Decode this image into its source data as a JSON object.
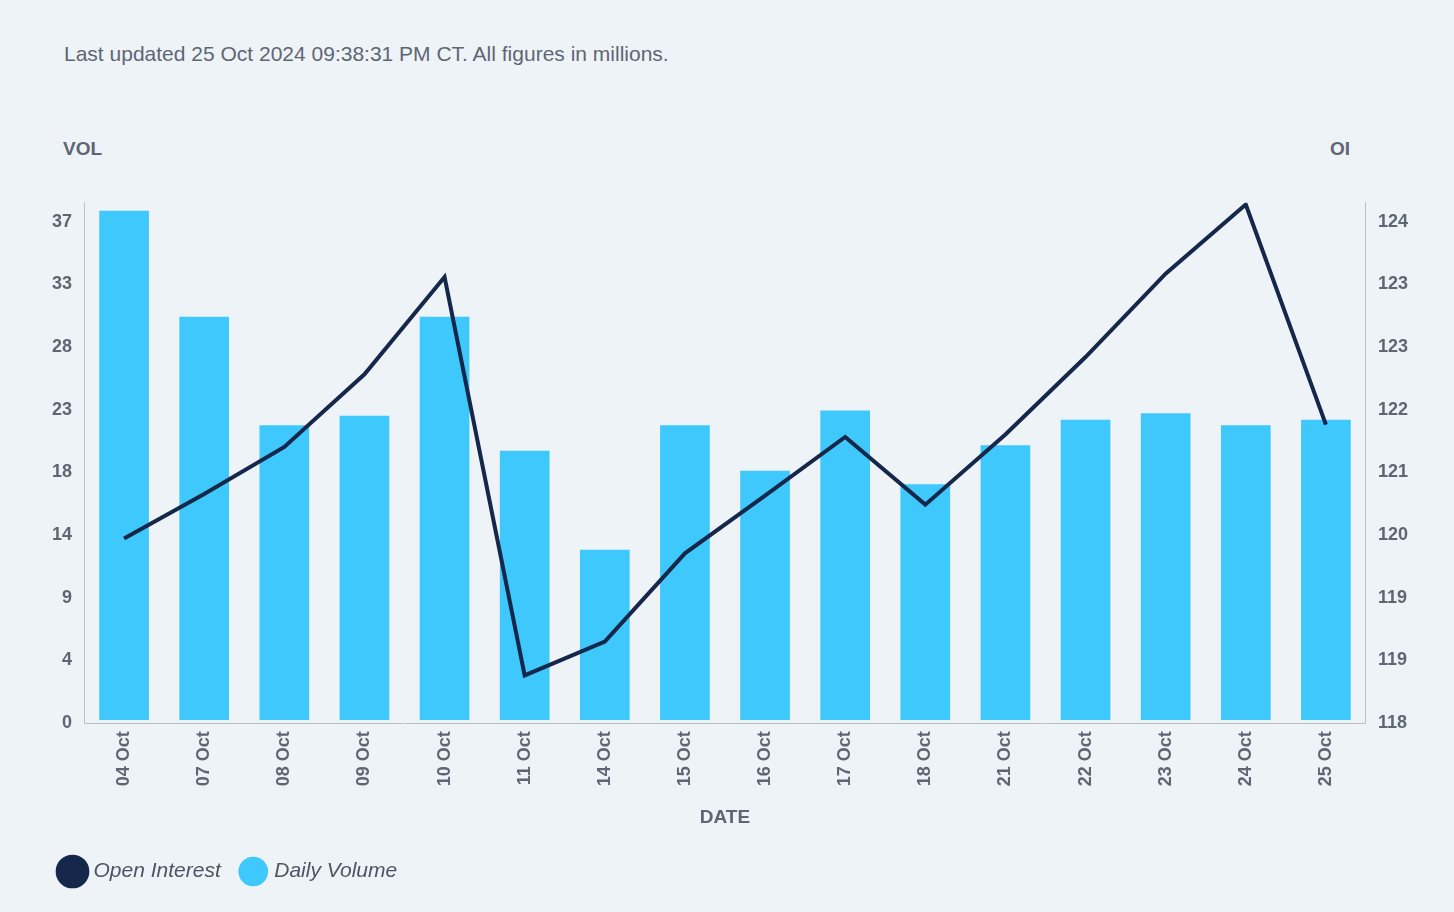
{
  "chart_data": {
    "type": "bar",
    "subtitle": "Last updated 25 Oct 2024 09:38:31 PM CT. All figures in millions.",
    "x_label": "DATE",
    "y_label": "VOL",
    "y2_label": "OI",
    "categories": [
      "04 Oct",
      "07 Oct",
      "08 Oct",
      "09 Oct",
      "10 Oct",
      "11 Oct",
      "14 Oct",
      "15 Oct",
      "16 Oct",
      "17 Oct",
      "18 Oct",
      "21 Oct",
      "22 Oct",
      "23 Oct",
      "24 Oct",
      "25 Oct"
    ],
    "series": [
      {
        "name": "Daily Volume",
        "type": "bar",
        "color": "#3ec8fc",
        "values": [
          38.0,
          30.1,
          22.0,
          22.7,
          30.1,
          20.1,
          12.7,
          22.0,
          18.6,
          23.1,
          17.6,
          20.5,
          22.4,
          22.9,
          22.0,
          22.4
        ]
      },
      {
        "name": "Open Interest",
        "type": "line",
        "axis": "y2",
        "color": "#15284b",
        "marker": "none",
        "line_style": "solid",
        "values": [
          120.19,
          120.73,
          121.3,
          122.18,
          123.36,
          118.53,
          118.94,
          120.01,
          120.71,
          121.42,
          120.6,
          121.45,
          122.39,
          123.4,
          124.24,
          121.57
        ]
      }
    ],
    "ylim": [
      -0.24,
      38.6
    ],
    "yticks": [
      {
        "value": -0.24,
        "label": "0"
      },
      {
        "value": 4.44,
        "label": "4"
      },
      {
        "value": 9.12,
        "label": "9"
      },
      {
        "value": 13.8,
        "label": "14"
      },
      {
        "value": 18.48,
        "label": "18"
      },
      {
        "value": 23.16,
        "label": "23"
      },
      {
        "value": 27.84,
        "label": "28"
      },
      {
        "value": 32.52,
        "label": "33"
      },
      {
        "value": 37.2,
        "label": "37"
      }
    ],
    "y2lim": [
      117.95,
      124.26
    ],
    "y2ticks": [
      {
        "value": 117.95,
        "label": "118"
      },
      {
        "value": 118.71,
        "label": "119"
      },
      {
        "value": 119.47,
        "label": "119"
      },
      {
        "value": 120.23,
        "label": "120"
      },
      {
        "value": 120.99,
        "label": "121"
      },
      {
        "value": 121.75,
        "label": "122"
      },
      {
        "value": 122.51,
        "label": "123"
      },
      {
        "value": 123.27,
        "label": "123"
      },
      {
        "value": 124.03,
        "label": "124"
      }
    ],
    "grid": false,
    "legend": "bottom-left"
  }
}
